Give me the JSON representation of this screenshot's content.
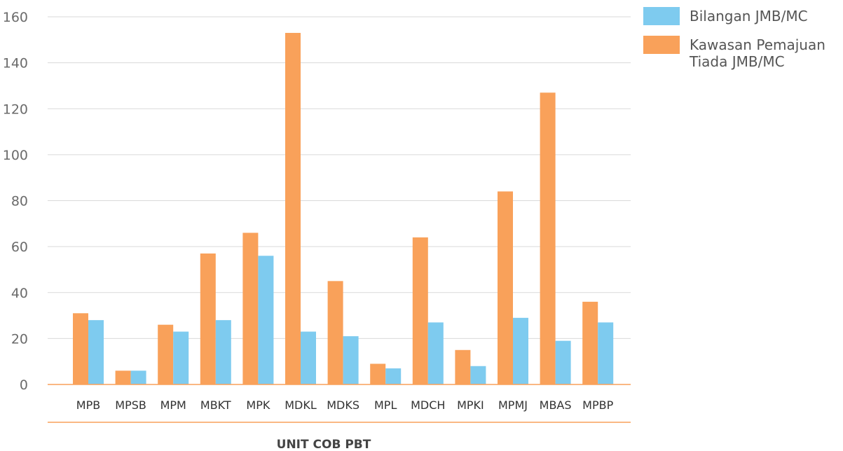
{
  "chart_data": {
    "type": "bar",
    "xlabel": "UNIT COB PBT",
    "ylabel": "",
    "ylim": [
      0,
      160
    ],
    "yticks": [
      0,
      20,
      40,
      60,
      80,
      100,
      120,
      140,
      160
    ],
    "grid": true,
    "legend_position": "top-right",
    "categories": [
      "MPB",
      "MPSB",
      "MPM",
      "MBKT",
      "MPK",
      "MDKL",
      "MDKS",
      "MPL",
      "MDCH",
      "MPKI",
      "MPMJ",
      "MBAS",
      "MPBP"
    ],
    "series": [
      {
        "name": "Kawasan Pemajuan Tiada JMB/MC",
        "legend_lines": [
          "Kawasan Pemajuan",
          "Tiada JMB/MC"
        ],
        "color": "#F9A15A",
        "values": [
          31,
          6,
          26,
          57,
          66,
          153,
          45,
          9,
          64,
          15,
          84,
          127,
          36
        ]
      },
      {
        "name": "Bilangan JMB/MC",
        "legend_lines": [
          "Bilangan JMB/MC"
        ],
        "color": "#7ECBEF",
        "values": [
          28,
          6,
          23,
          28,
          56,
          23,
          21,
          7,
          27,
          8,
          29,
          19,
          27
        ]
      }
    ]
  }
}
